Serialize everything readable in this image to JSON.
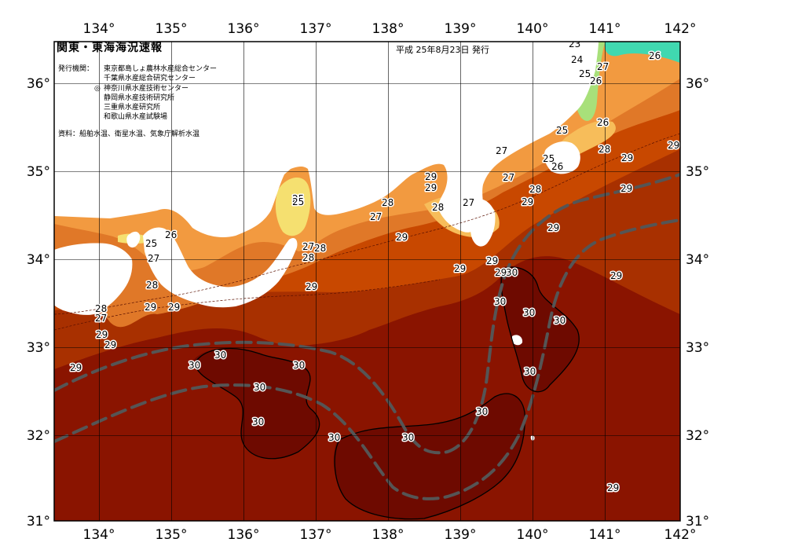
{
  "header": {
    "title": "関東・東海海況速報",
    "date": "平成  25年8月23日  発行",
    "issuers_label": "発行機関：",
    "issuers": [
      {
        "mark": "",
        "name": "東京都島しょ農林水産総合センター"
      },
      {
        "mark": "",
        "name": "千葉県水産総合研究センター"
      },
      {
        "mark": "◎",
        "name": "神奈川県水産技術センター"
      },
      {
        "mark": "",
        "name": "静岡県水産技術研究所"
      },
      {
        "mark": "",
        "name": "三重県水産研究所"
      },
      {
        "mark": "",
        "name": "和歌山県水産試験場"
      }
    ],
    "source": "資料：船舶水温、衛星水温、気象庁解析水温"
  },
  "map": {
    "lon_labels": [
      "134°",
      "135°",
      "136°",
      "137°",
      "138°",
      "139°",
      "140°",
      "141°",
      "142°"
    ],
    "lat_labels": [
      "36°",
      "35°",
      "34°",
      "33°",
      "32°",
      "31°"
    ],
    "colors": {
      "land": "#ffffff",
      "sea_28": "#c84800",
      "sea_29": "#a83000",
      "sea_30": "#8a1400",
      "warm_core": "#6e0a00",
      "temp_27": "#e07828",
      "temp_26": "#f29a40",
      "temp_25": "#f7bd5a",
      "temp_24": "#f5e070",
      "temp_23": "#a8e07a",
      "temp_22": "#40d8b0",
      "kuroshio_axis": "#555555"
    },
    "isotherm_labels": [
      {
        "text": "23"
      },
      {
        "text": "24"
      },
      {
        "text": "25"
      },
      {
        "text": "26"
      },
      {
        "text": "27"
      },
      {
        "text": "26"
      },
      {
        "text": "25"
      },
      {
        "text": "26"
      },
      {
        "text": "28"
      },
      {
        "text": "29"
      },
      {
        "text": "29"
      },
      {
        "text": "29"
      },
      {
        "text": "25"
      },
      {
        "text": "26"
      },
      {
        "text": "28"
      },
      {
        "text": "29"
      },
      {
        "text": "27"
      },
      {
        "text": "27"
      },
      {
        "text": "29"
      },
      {
        "text": "29"
      },
      {
        "text": "28"
      },
      {
        "text": "27"
      },
      {
        "text": "28"
      },
      {
        "text": "27"
      },
      {
        "text": "29"
      },
      {
        "text": "29"
      },
      {
        "text": "29"
      },
      {
        "text": "29"
      },
      {
        "text": "29"
      },
      {
        "text": "30"
      },
      {
        "text": "30"
      },
      {
        "text": "30"
      },
      {
        "text": "30"
      },
      {
        "text": "30"
      },
      {
        "text": "29"
      },
      {
        "text": "25"
      },
      {
        "text": "25"
      },
      {
        "text": "27"
      },
      {
        "text": "28"
      },
      {
        "text": "28"
      },
      {
        "text": "29"
      },
      {
        "text": "25"
      },
      {
        "text": "26"
      },
      {
        "text": "27"
      },
      {
        "text": "28"
      },
      {
        "text": "29"
      },
      {
        "text": "29"
      },
      {
        "text": "28"
      },
      {
        "text": "27"
      },
      {
        "text": "29"
      },
      {
        "text": "29"
      },
      {
        "text": "29"
      },
      {
        "text": "30"
      },
      {
        "text": "30"
      },
      {
        "text": "30"
      },
      {
        "text": "30"
      },
      {
        "text": "30"
      },
      {
        "text": "30"
      },
      {
        "text": "30"
      },
      {
        "text": "30"
      },
      {
        "text": "29"
      }
    ]
  }
}
